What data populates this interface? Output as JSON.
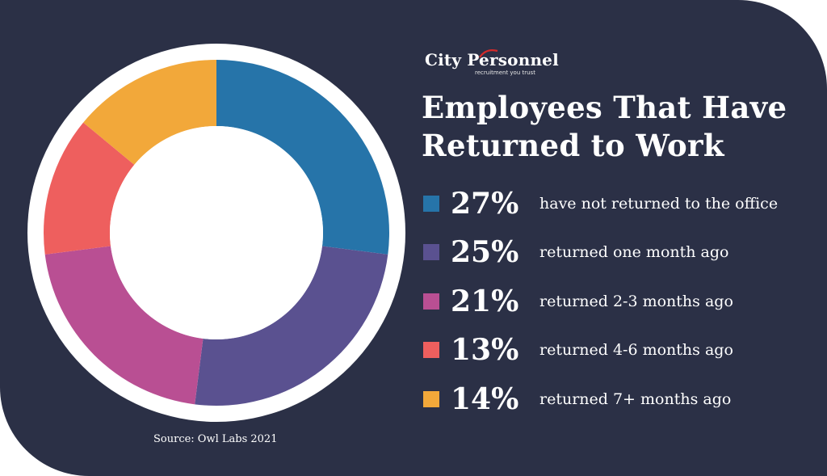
{
  "brand": {
    "name": "City Personnel",
    "tagline": "recruitment you trust"
  },
  "chart_data": {
    "type": "pie",
    "title": "Employees That Have Returned to Work",
    "source": "Source: Owl Labs 2021",
    "donut": true,
    "slices": [
      {
        "label": "have not returned to the office",
        "value": 27,
        "display": "27%",
        "color": "#2674a9"
      },
      {
        "label": "returned one month ago",
        "value": 25,
        "display": "25%",
        "color": "#5a5190"
      },
      {
        "label": "returned 2-3 months ago",
        "value": 21,
        "display": "21%",
        "color": "#b94f93"
      },
      {
        "label": "returned 4-6 months ago",
        "value": 13,
        "display": "13%",
        "color": "#ee5f5e"
      },
      {
        "label": "returned 7+ months ago",
        "value": 14,
        "display": "14%",
        "color": "#f2a83a"
      }
    ]
  }
}
